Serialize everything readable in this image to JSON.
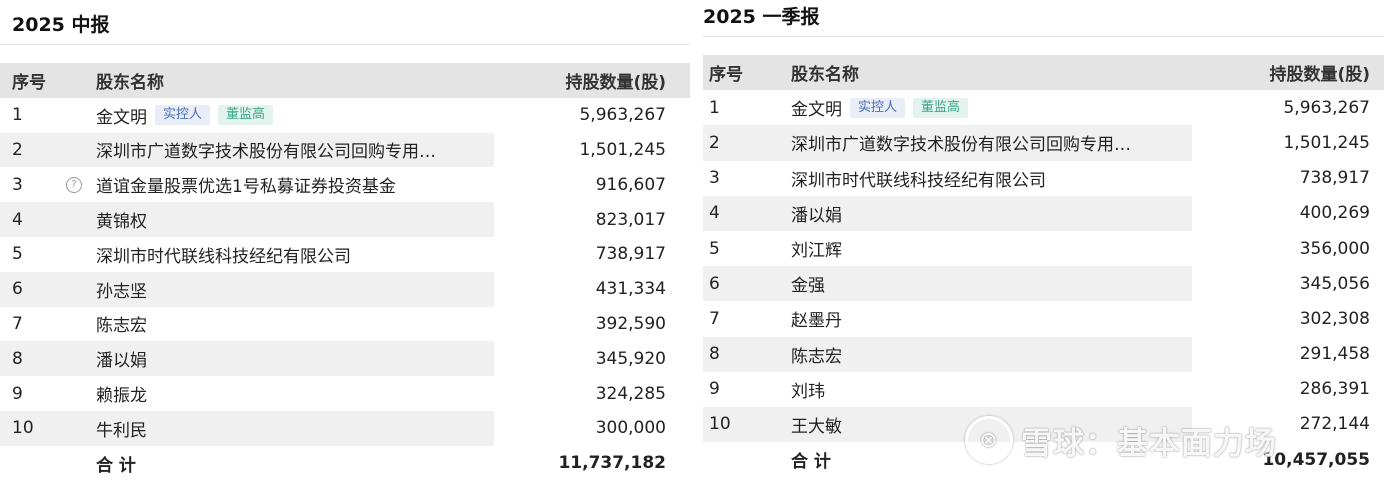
{
  "left": {
    "title": "2025 中报",
    "header": {
      "idx": "序号",
      "name": "股东名称",
      "value": "持股数量(股)"
    },
    "rows": [
      {
        "idx": "1",
        "name": "金文明",
        "tags": [
          "实控人",
          "董监高"
        ],
        "value": "5,963,267"
      },
      {
        "idx": "2",
        "name": "深圳市广道数字技术股份有限公司回购专用…",
        "value": "1,501,245"
      },
      {
        "idx": "3",
        "name": "道谊金量股票优选1号私募证券投资基金",
        "value": "916,607",
        "info_icon": "?"
      },
      {
        "idx": "4",
        "name": "黄锦权",
        "value": "823,017"
      },
      {
        "idx": "5",
        "name": "深圳市时代联线科技经纪有限公司",
        "value": "738,917"
      },
      {
        "idx": "6",
        "name": "孙志坚",
        "value": "431,334"
      },
      {
        "idx": "7",
        "name": "陈志宏",
        "value": "392,590"
      },
      {
        "idx": "8",
        "name": "潘以娟",
        "value": "345,920"
      },
      {
        "idx": "9",
        "name": "赖振龙",
        "value": "324,285"
      },
      {
        "idx": "10",
        "name": "牛利民",
        "value": "300,000"
      }
    ],
    "total": {
      "label": "合 计",
      "value": "11,737,182"
    }
  },
  "right": {
    "title": "2025 一季报",
    "header": {
      "idx": "序号",
      "name": "股东名称",
      "value": "持股数量(股)"
    },
    "rows": [
      {
        "idx": "1",
        "name": "金文明",
        "tags": [
          "实控人",
          "董监高"
        ],
        "value": "5,963,267"
      },
      {
        "idx": "2",
        "name": "深圳市广道数字技术股份有限公司回购专用…",
        "value": "1,501,245"
      },
      {
        "idx": "3",
        "name": "深圳市时代联线科技经纪有限公司",
        "value": "738,917"
      },
      {
        "idx": "4",
        "name": "潘以娟",
        "value": "400,269"
      },
      {
        "idx": "5",
        "name": "刘江辉",
        "value": "356,000"
      },
      {
        "idx": "6",
        "name": "金强",
        "value": "345,056"
      },
      {
        "idx": "7",
        "name": "赵墨丹",
        "value": "302,308"
      },
      {
        "idx": "8",
        "name": "陈志宏",
        "value": "291,458"
      },
      {
        "idx": "9",
        "name": "刘玮",
        "value": "286,391"
      },
      {
        "idx": "10",
        "name": "王大敏",
        "value": "272,144"
      }
    ],
    "total": {
      "label": "合 计",
      "value": "10,457,055"
    }
  },
  "watermark": {
    "text": "雪球：基本面力场",
    "logo_icon": "xueqiu-logo-icon"
  }
}
